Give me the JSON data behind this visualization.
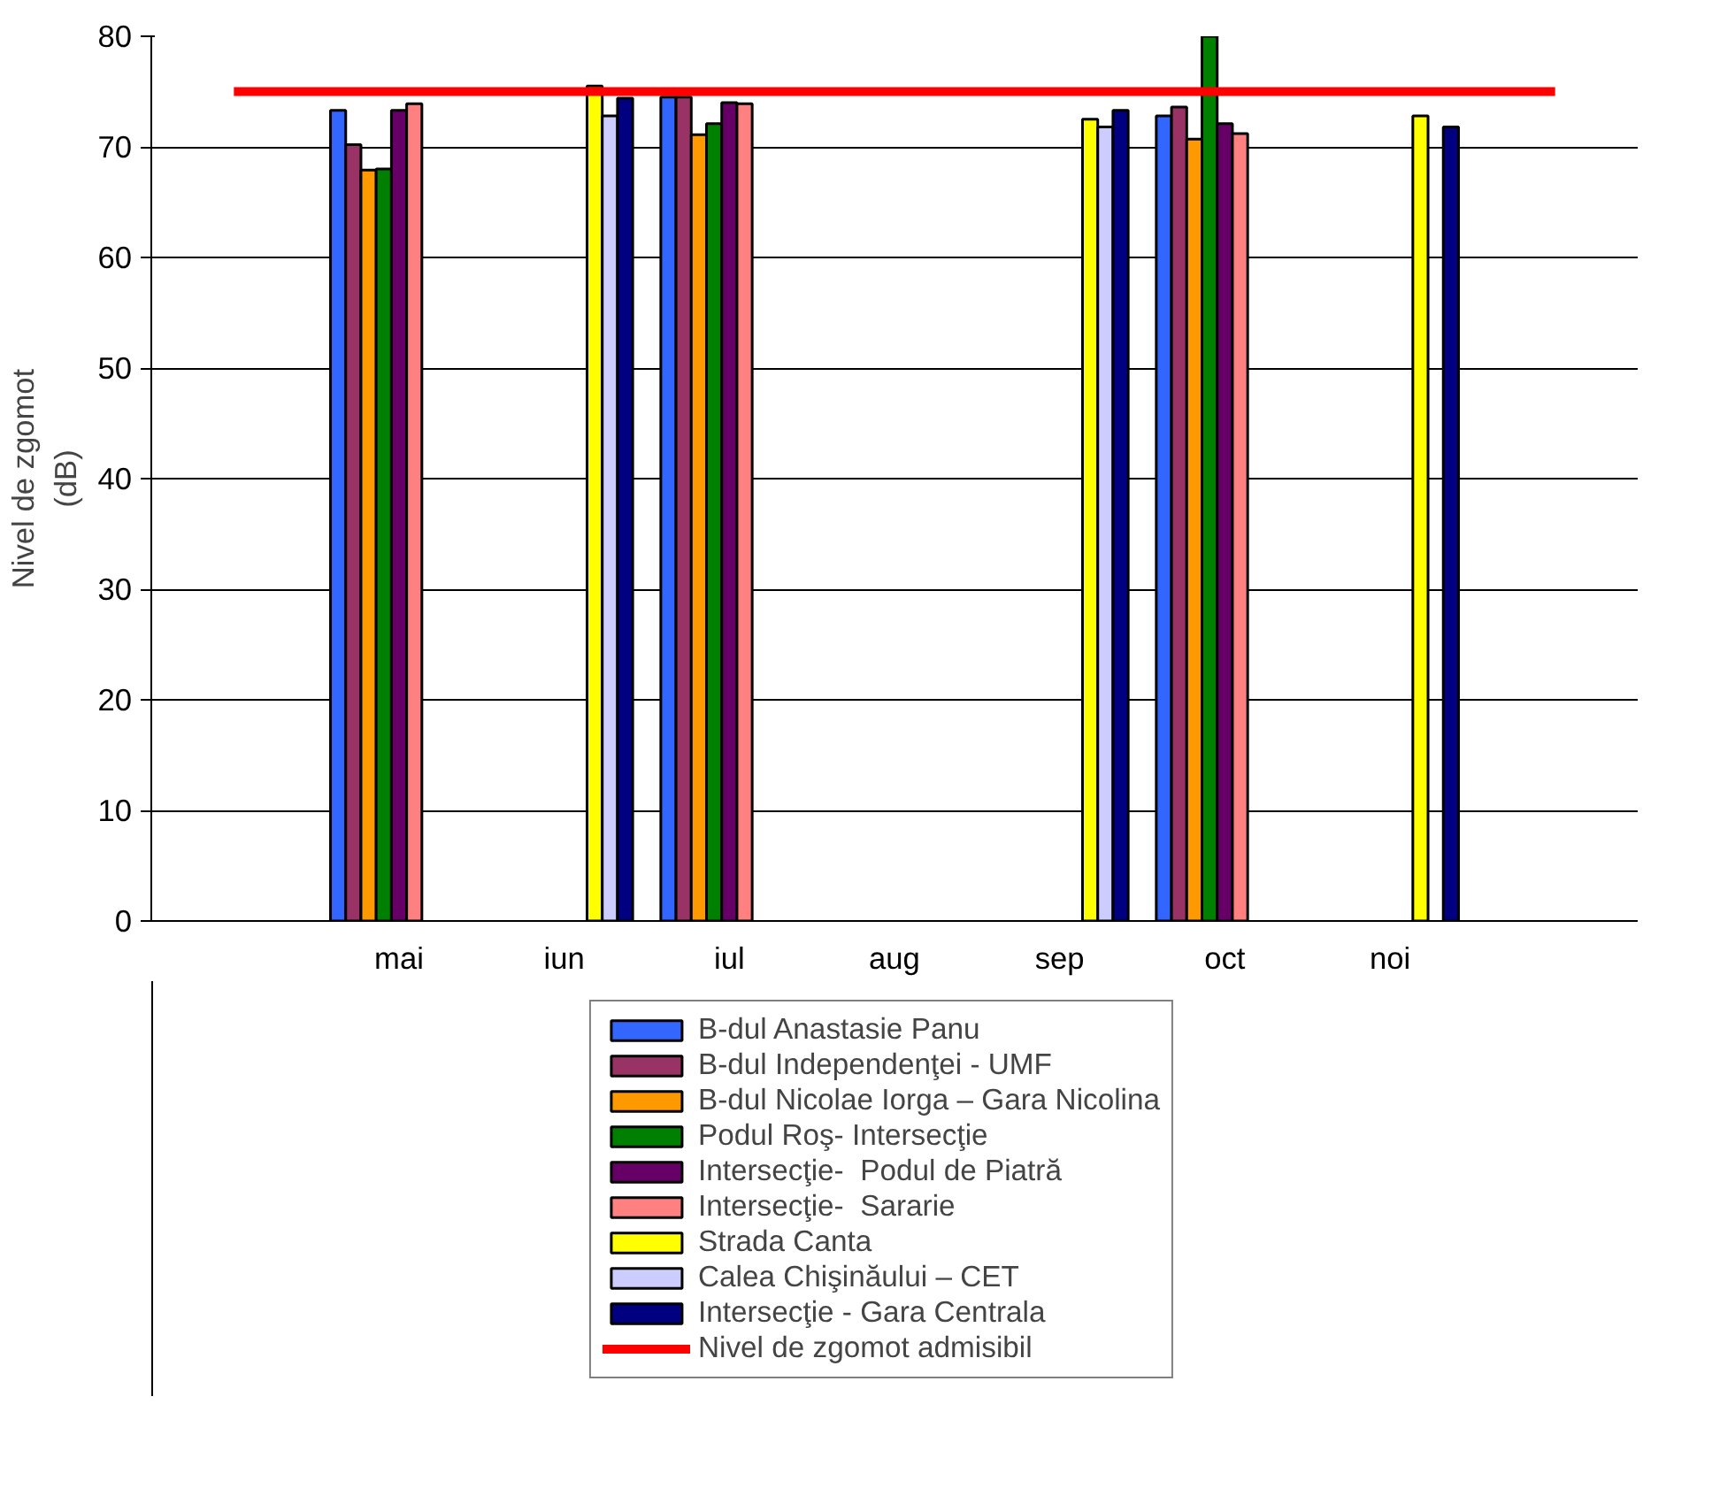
{
  "chart_data": {
    "type": "bar",
    "ylabel": "Nivel de zgomot\n(dB)",
    "categories": [
      null,
      "mai",
      "iun",
      "iul",
      "aug",
      "sep",
      "oct",
      "noi",
      null
    ],
    "ylim": [
      0,
      80
    ],
    "yticks": [
      0,
      10,
      20,
      30,
      40,
      50,
      60,
      70,
      80
    ],
    "grid": "y",
    "legend": "bottom",
    "series": [
      {
        "name": "B-dul Anastasie Panu",
        "color": "#3366ff",
        "values": [
          null,
          73.3,
          null,
          74.5,
          null,
          null,
          72.8,
          null,
          null
        ]
      },
      {
        "name": "B-dul Independenţei - UMF",
        "color": "#993366",
        "values": [
          null,
          70.2,
          null,
          74.5,
          null,
          null,
          73.6,
          null,
          null
        ]
      },
      {
        "name": "B-dul Nicolae Iorga – Gara Nicolina",
        "color": "#ff9900",
        "values": [
          null,
          67.9,
          null,
          71.1,
          null,
          null,
          70.7,
          null,
          null
        ]
      },
      {
        "name": "Podul Roş- Intersecţie",
        "color": "#008000",
        "values": [
          null,
          68.0,
          null,
          72.1,
          null,
          null,
          80,
          null,
          null
        ]
      },
      {
        "name": "Intersecţie-  Podul de Piatră",
        "color": "#660066",
        "values": [
          null,
          73.3,
          null,
          74.0,
          null,
          null,
          72.1,
          null,
          null
        ]
      },
      {
        "name": "Intersecţie-  Sararie",
        "color": "#ff8080",
        "values": [
          null,
          73.9,
          null,
          73.9,
          null,
          null,
          71.2,
          null,
          null
        ]
      },
      {
        "name": "Strada Canta",
        "color": "#ffff00",
        "values": [
          null,
          null,
          75.5,
          null,
          null,
          72.5,
          null,
          72.8,
          null
        ]
      },
      {
        "name": "Calea Chişinăului – CET",
        "color": "#ccccff",
        "values": [
          null,
          null,
          72.8,
          null,
          null,
          71.8,
          null,
          null,
          null
        ]
      },
      {
        "name": "Intersecţie - Gara Centrala",
        "color": "#000080",
        "values": [
          null,
          null,
          74.4,
          null,
          null,
          73.3,
          null,
          71.8,
          null
        ]
      },
      {
        "name": "Nivel de zgomot admisibil",
        "color": "#ff0000",
        "type": "line",
        "values": [
          75,
          75,
          75,
          75,
          75,
          75,
          75,
          75,
          75
        ]
      }
    ]
  }
}
